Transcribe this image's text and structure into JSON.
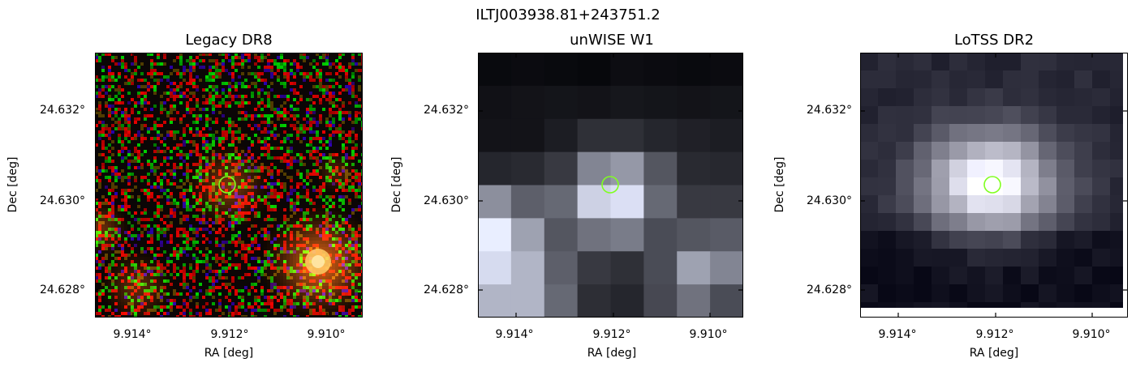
{
  "figure": {
    "suptitle": "ILTJ003938.81+243751.2"
  },
  "panels": [
    {
      "id": "legacy",
      "title": "Legacy DR8",
      "xlabel": "RA [deg]",
      "ylabel": "Dec [deg]",
      "xticks": [
        "9.914°",
        "9.912°",
        "9.910°"
      ],
      "yticks": [
        "24.632°",
        "24.630°",
        "24.628°"
      ],
      "marker_color": "#80ff20",
      "image_type": "rgb-noise"
    },
    {
      "id": "unwise",
      "title": "unWISE W1",
      "xlabel": "RA [deg]",
      "ylabel": "Dec [deg]",
      "xticks": [
        "9.914°",
        "9.912°",
        "9.910°"
      ],
      "yticks": [
        "24.632°",
        "24.630°",
        "24.628°"
      ],
      "marker_color": "#80ff20",
      "image_type": "grayscale-pixelated"
    },
    {
      "id": "lotss",
      "title": "LoTSS DR2",
      "xlabel": "RA [deg]",
      "ylabel": "Dec [deg]",
      "xticks": [
        "9.914°",
        "9.912°",
        "9.910°"
      ],
      "yticks": [
        "24.632°",
        "24.630°",
        "24.628°"
      ],
      "marker_color": "#80ff20",
      "image_type": "grayscale-smooth"
    }
  ]
}
